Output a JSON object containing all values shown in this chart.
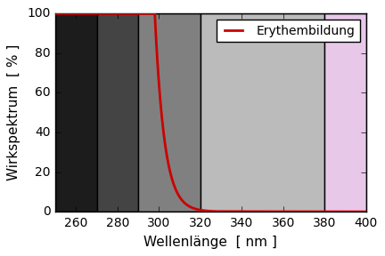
{
  "title": "",
  "xlabel": "Wellenlänge  [ nm ]",
  "ylabel": "Wirkspektrum  [ % ]",
  "xlim": [
    250,
    400
  ],
  "ylim": [
    0,
    100
  ],
  "xticks": [
    260,
    280,
    300,
    320,
    340,
    360,
    380,
    400
  ],
  "yticks": [
    0,
    20,
    40,
    60,
    80,
    100
  ],
  "legend_label": "Erythembildung",
  "curve_color": "#cc0000",
  "curve_linewidth": 2.0,
  "background_regions": [
    {
      "xmin": 250,
      "xmax": 270,
      "color": "#1c1c1c"
    },
    {
      "xmin": 270,
      "xmax": 290,
      "color": "#444444"
    },
    {
      "xmin": 290,
      "xmax": 320,
      "color": "#808080"
    },
    {
      "xmin": 320,
      "xmax": 380,
      "color": "#bbbbbb"
    },
    {
      "xmin": 380,
      "xmax": 400,
      "color": "#e8c8e8"
    }
  ],
  "figsize": [
    4.32,
    2.88
  ],
  "dpi": 100,
  "font_size": 11,
  "tick_fontsize": 10
}
